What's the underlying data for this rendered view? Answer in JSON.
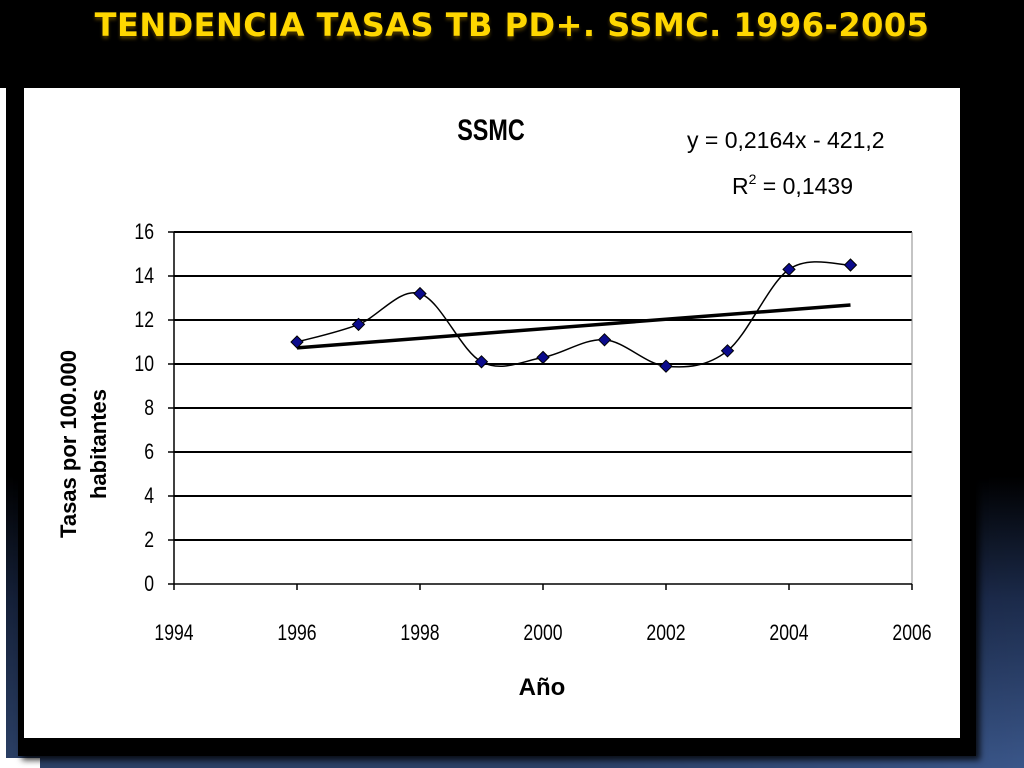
{
  "slide": {
    "title": "TENDENCIA TASAS TB PD+. SSMC. 1996-2005"
  },
  "chart_data": {
    "type": "scatter",
    "title": "SSMC",
    "xlabel": "Año",
    "ylabel_lines": [
      "Tasas por 100.000",
      "habitantes"
    ],
    "xlim": [
      1994,
      2006
    ],
    "ylim": [
      0,
      16
    ],
    "x_ticks": [
      1994,
      1996,
      1998,
      2000,
      2002,
      2004,
      2006
    ],
    "y_ticks": [
      0,
      2,
      4,
      6,
      8,
      10,
      12,
      14,
      16
    ],
    "grid": true,
    "series": [
      {
        "x": [
          1996,
          1997,
          1998,
          1999,
          2000,
          2001,
          2002,
          2003,
          2004,
          2005
        ],
        "y": [
          11.0,
          11.8,
          13.2,
          10.1,
          10.3,
          11.1,
          9.9,
          10.6,
          14.3,
          14.5
        ],
        "marker": "diamond",
        "smoothed_line": true,
        "marker_color": "#0b0b8c"
      }
    ],
    "trendline": {
      "x_range": [
        1996,
        2005
      ],
      "slope": 0.2164,
      "intercept": -421.2
    },
    "annotations": {
      "equation": "y = 0,2164x - 421,2",
      "r2_label": "R",
      "r2_sup": "2",
      "r2_value": " = 0,1439"
    }
  }
}
